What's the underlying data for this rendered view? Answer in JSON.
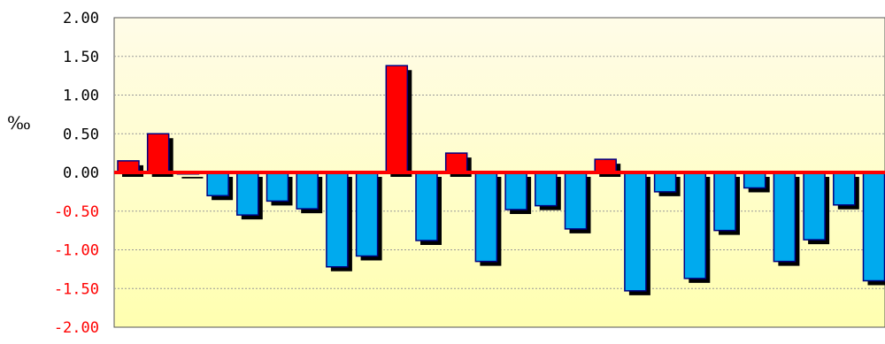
{
  "chart_data": {
    "type": "bar",
    "ylabel": "‰",
    "ylim": [
      -2.0,
      2.0
    ],
    "yticks": [
      "2.00",
      "1.50",
      "1.00",
      "0.50",
      "0.00",
      "-0.50",
      "-1.00",
      "-1.50",
      "-2.00"
    ],
    "grid": true,
    "values": [
      0.15,
      0.5,
      -0.02,
      -0.3,
      -0.55,
      -0.37,
      -0.47,
      -1.22,
      -1.08,
      1.38,
      -0.88,
      0.25,
      -1.15,
      -0.48,
      -0.43,
      -0.73,
      0.17,
      -1.53,
      -0.25,
      -1.37,
      -0.75,
      -0.2,
      -1.15,
      -0.87,
      -0.42,
      -1.4
    ],
    "colors": {
      "positive": "#ff0000",
      "negative": "#00aaee",
      "plot_background": "#ffffcc",
      "zero_line": "#ff0000",
      "bar_shadow": "#000000",
      "bar_outline": "#000080",
      "negative_tick_text": "#ff0000",
      "positive_tick_text": "#000000"
    }
  }
}
